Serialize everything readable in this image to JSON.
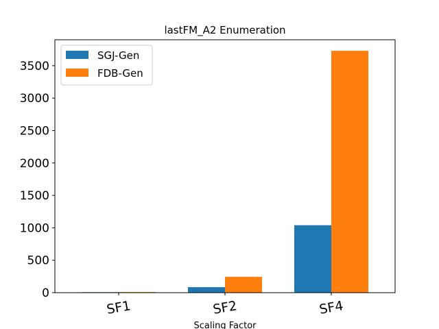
{
  "chart_data": {
    "type": "bar",
    "title": "lastFM_A2 Enumeration",
    "xlabel": "Scaling Factor",
    "ylabel": "",
    "categories": [
      "SF1",
      "SF2",
      "SF4"
    ],
    "series": [
      {
        "name": "SGJ-Gen",
        "color": "#1f77b4",
        "values": [
          8,
          85,
          1040
        ]
      },
      {
        "name": "FDB-Gen",
        "color": "#ff7f0e",
        "values": [
          10,
          245,
          3730
        ]
      }
    ],
    "ylim": [
      0,
      3900
    ],
    "yticks": [
      0,
      500,
      1000,
      1500,
      2000,
      2500,
      3000,
      3500
    ],
    "legend": "top-left",
    "grid": false
  }
}
